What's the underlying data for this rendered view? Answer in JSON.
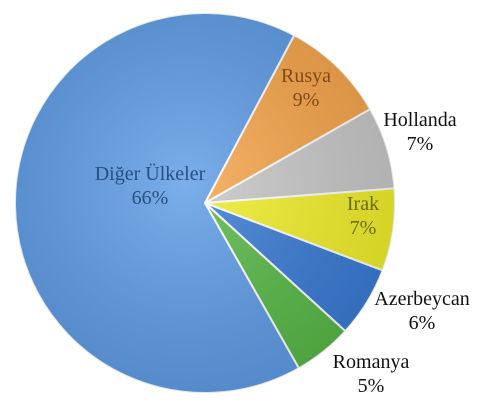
{
  "chart_data": {
    "type": "pie",
    "slices": [
      {
        "label": "Rusya",
        "value": "9%",
        "percent": 9,
        "color": "#F7A54A",
        "label_color": "#7F4A1A",
        "label_placement": "inside"
      },
      {
        "label": "Hollanda",
        "value": "7%",
        "percent": 7,
        "color": "#C8C8C8",
        "label_color": "#111111",
        "label_placement": "outside"
      },
      {
        "label": "Irak",
        "value": "7%",
        "percent": 7,
        "color": "#F2EF2A",
        "label_color": "#6B6A10",
        "label_placement": "inside"
      },
      {
        "label": "Azerbeycan",
        "value": "6%",
        "percent": 6,
        "color": "#3A7BD5",
        "label_color": "#111111",
        "label_placement": "outside"
      },
      {
        "label": "Romanya",
        "value": "5%",
        "percent": 5,
        "color": "#58B947",
        "label_color": "#111111",
        "label_placement": "outside"
      },
      {
        "label": "Diğer Ülkeler",
        "value": "66%",
        "percent": 66,
        "color": "#5E9CE6",
        "label_color": "#2A4F80",
        "label_placement": "inside"
      }
    ]
  }
}
